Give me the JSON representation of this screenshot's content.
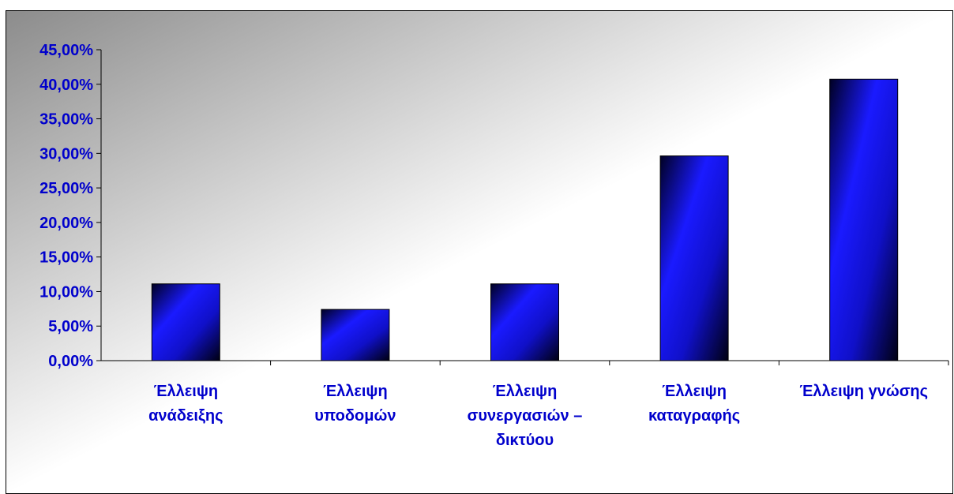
{
  "chart_data": {
    "type": "bar",
    "title": "",
    "xlabel": "",
    "ylabel": "",
    "categories": [
      [
        "Έλλειψη",
        "ανάδειξης"
      ],
      [
        "Έλλειψη",
        "υποδομών"
      ],
      [
        "Έλλειψη",
        "συνεργασιών –",
        "δικτύου"
      ],
      [
        "Έλλειψη",
        "καταγραφής"
      ],
      [
        "Έλλειψη γνώσης"
      ]
    ],
    "values": [
      11.11,
      7.41,
      11.11,
      29.63,
      40.74
    ],
    "ylim": [
      0,
      45
    ],
    "yticks": [
      0,
      5,
      10,
      15,
      20,
      25,
      30,
      35,
      40,
      45
    ],
    "ytick_labels": [
      "0,00%",
      "5,00%",
      "10,00%",
      "15,00%",
      "20,00%",
      "25,00%",
      "30,00%",
      "35,00%",
      "40,00%",
      "45,00%"
    ],
    "grid": false,
    "legend": "none",
    "colors": {
      "bar_light": "#1a1aff",
      "bar_dark": "#000022",
      "label_color": "#0000cc",
      "bg_light": "#ffffff",
      "bg_dark": "#8c8c8c"
    }
  }
}
